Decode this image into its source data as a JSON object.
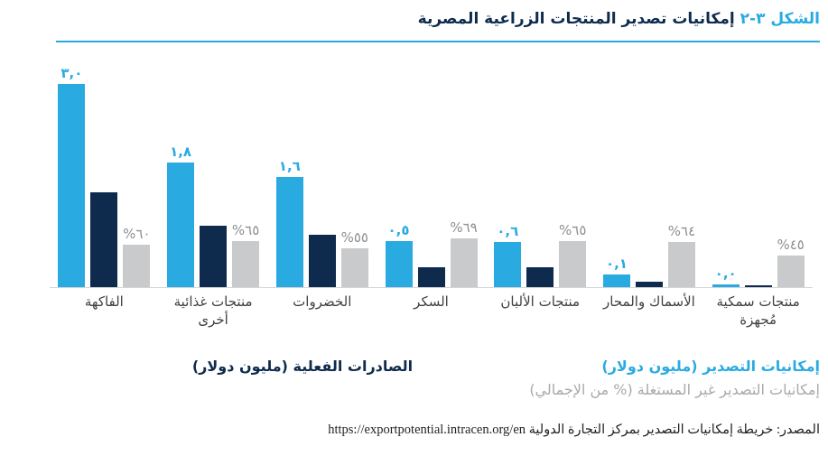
{
  "figure": {
    "tag": "الشكل ٣-٢",
    "title": "إمكانيات تصدير المنتجات الزراعية المصرية"
  },
  "chart_data": {
    "type": "bar",
    "direction": "rtl",
    "title": "إمكانيات تصدير المنتجات الزراعية المصرية",
    "categories": [
      "الفاكهة",
      "منتجات غذائية أخرى",
      "الخضروات",
      "السكر",
      "منتجات الألبان",
      "الأسماك والمحار",
      "منتجات سمكية مُجهزة"
    ],
    "series": [
      {
        "name": "إمكانيات التصدير (مليون دولار)",
        "color": "#29abe2",
        "values": [
          3.0,
          1.8,
          1.6,
          0.5,
          0.6,
          0.1,
          0.0
        ],
        "value_labels": [
          "٣,٠",
          "١,٨",
          "١,٦",
          "٠,٥",
          "٠,٦",
          "٠,١",
          "٠,٠"
        ]
      },
      {
        "name": "الصادرات الفعلية (مليون دولار)",
        "color": "#0e2b4d",
        "values_estimated": [
          1.4,
          0.9,
          0.8,
          0.3,
          0.3,
          0.08,
          0.02
        ],
        "value_labels": []
      },
      {
        "name": "إمكانيات التصدير غير المستغلة (% من الإجمالي)",
        "color": "#c8cacc",
        "values": [
          60,
          65,
          55,
          69,
          65,
          64,
          45
        ],
        "value_labels": [
          "%٦٠",
          "%٦٥",
          "%٥٥",
          "%٦٩",
          "%٦٥",
          "%٦٤",
          "%٤٥"
        ]
      }
    ],
    "grid": false,
    "legend_position": "bottom"
  },
  "legend": {
    "actual": "الصادرات الفعلية (مليون دولار)",
    "potential": "إمكانيات التصدير (مليون دولار)",
    "untapped": "إمكانيات التصدير غير المستغلة (% من الإجمالي)"
  },
  "source": {
    "label": "المصدر: خريطة إمكانيات التصدير بمركز التجارة الدولية",
    "url": "https://exportpotential.intracen.org/en"
  },
  "colors": {
    "accent_blue": "#29abe2",
    "dark_navy": "#0e2b4d",
    "bar_gray": "#c8cacc",
    "label_gray": "#8d9093",
    "category_text": "#414042"
  }
}
